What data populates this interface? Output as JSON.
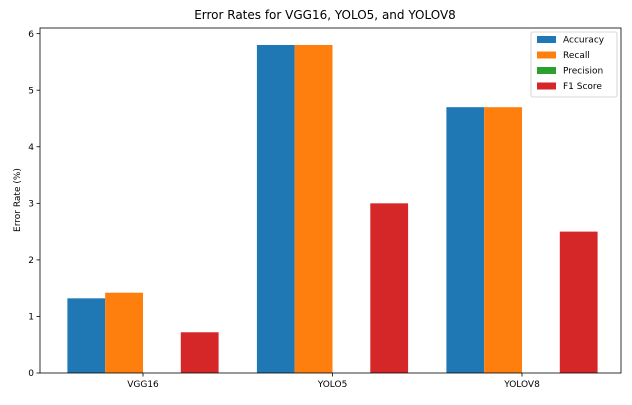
{
  "chart_data": {
    "type": "bar",
    "title": "Error Rates for VGG16, YOLO5, and YOLOV8",
    "xlabel": "",
    "ylabel": "Error Rate (%)",
    "categories": [
      "VGG16",
      "YOLO5",
      "YOLOV8"
    ],
    "series": [
      {
        "name": "Accuracy",
        "color": "#1f77b4",
        "values": [
          1.32,
          5.8,
          4.7
        ]
      },
      {
        "name": "Recall",
        "color": "#ff7f0e",
        "values": [
          1.42,
          5.8,
          4.7
        ]
      },
      {
        "name": "Precision",
        "color": "#2ca02c",
        "values": [
          0,
          0,
          0
        ]
      },
      {
        "name": "F1 Score",
        "color": "#d62728",
        "values": [
          0.72,
          3.0,
          2.5
        ]
      }
    ],
    "ylim": [
      0,
      6.1
    ],
    "yticks": [
      0,
      1,
      2,
      3,
      4,
      5,
      6
    ],
    "grid": false,
    "legend_position": "top-right"
  }
}
